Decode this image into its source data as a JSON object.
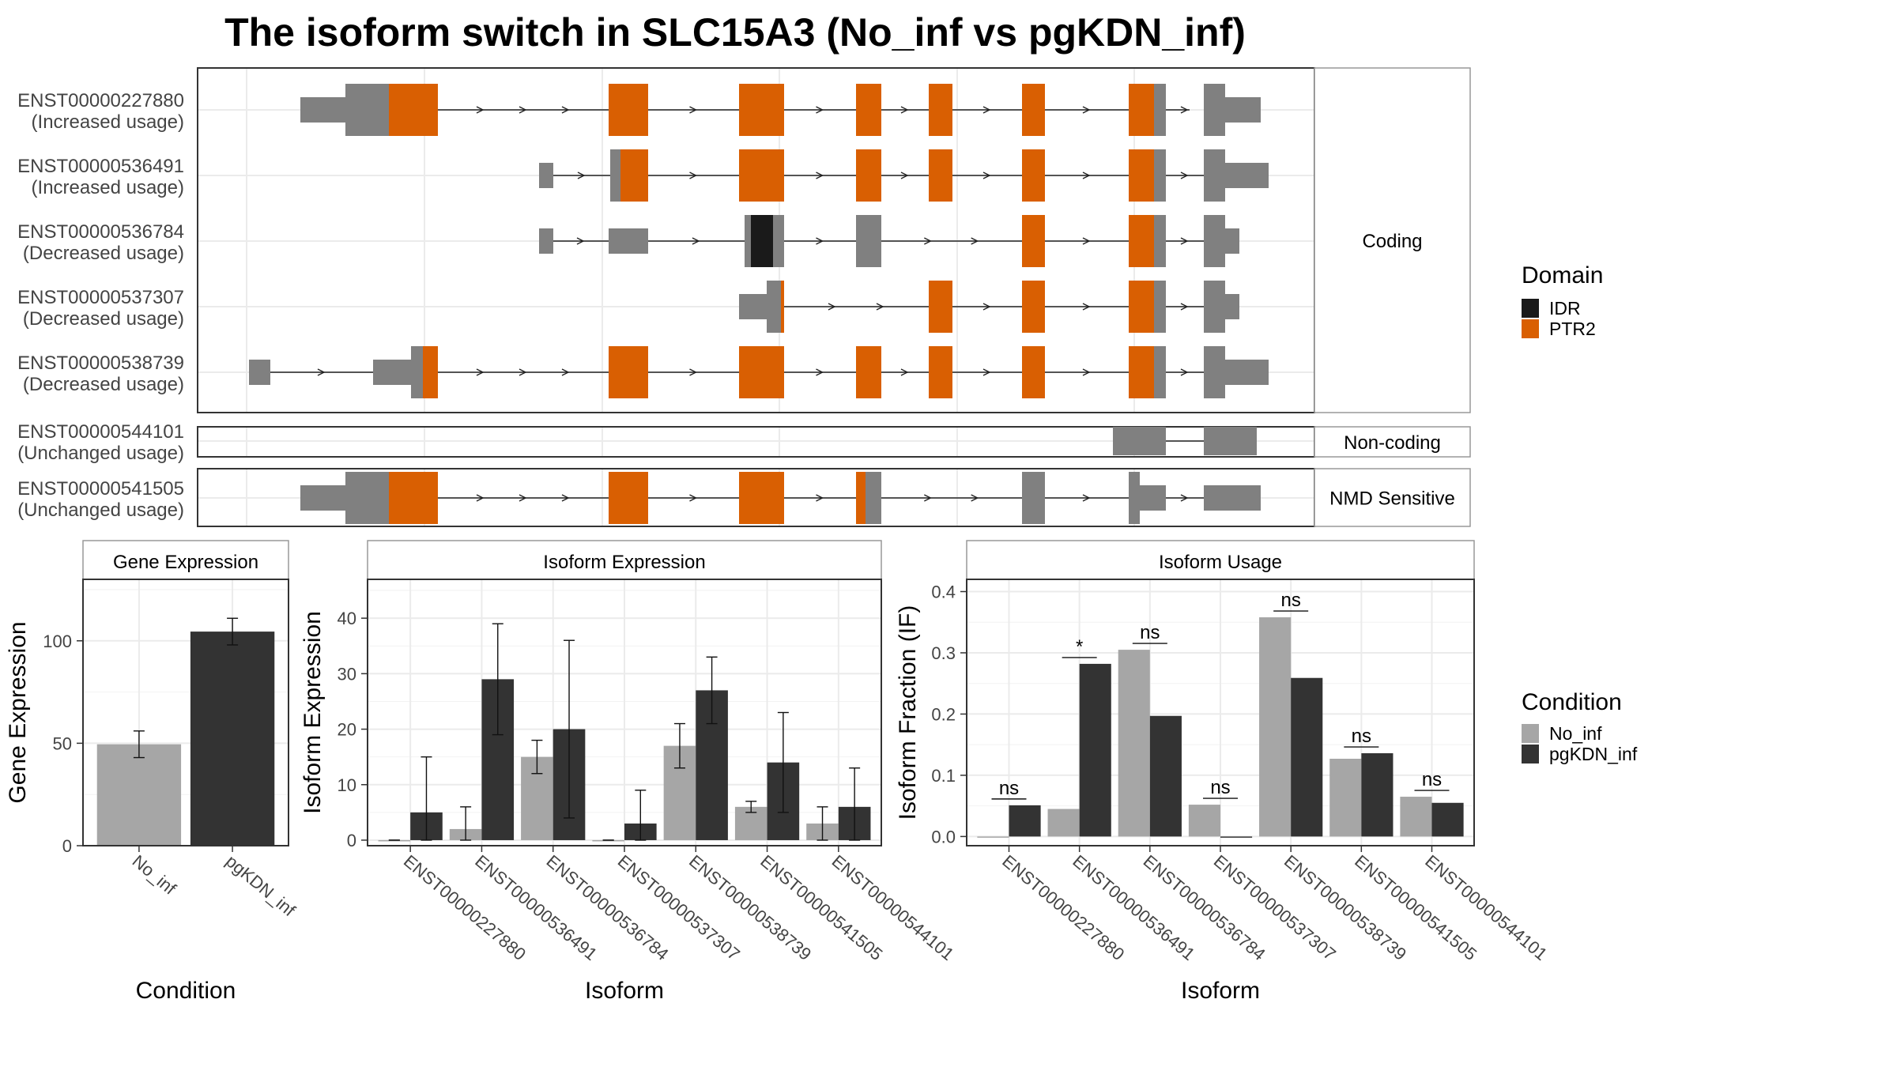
{
  "figure_title": "The isoform switch in SLC15A3 (No_inf vs pgKDN_inf)",
  "colors": {
    "no_inf": "#a6a6a6",
    "pgkdn_inf": "#333333",
    "ptr2": "#d95f02",
    "idr": "#1a1a1a",
    "exon": "#808080",
    "grid": "#ebebeb",
    "strip_border": "#999999"
  },
  "structure": {
    "sections": [
      {
        "name": "Coding"
      },
      {
        "name": "Non-coding"
      },
      {
        "name": "NMD Sensitive"
      }
    ],
    "isoforms": [
      {
        "id": "ENST00000227880",
        "usage": "(Increased usage)",
        "section": 0
      },
      {
        "id": "ENST00000536491",
        "usage": "(Increased usage)",
        "section": 0
      },
      {
        "id": "ENST00000536784",
        "usage": "(Decreased usage)",
        "section": 0
      },
      {
        "id": "ENST00000537307",
        "usage": "(Decreased usage)",
        "section": 0
      },
      {
        "id": "ENST00000538739",
        "usage": "(Decreased usage)",
        "section": 0
      },
      {
        "id": "ENST00000544101",
        "usage": "(Unchanged usage)",
        "section": 1
      },
      {
        "id": "ENST00000541505",
        "usage": "(Unchanged usage)",
        "section": 2
      }
    ],
    "legend_title": "Domain",
    "legend_items": [
      {
        "label": "IDR",
        "color": "#1a1a1a"
      },
      {
        "label": "PTR2",
        "color": "#d95f02"
      }
    ]
  },
  "chart_data": [
    {
      "type": "bar",
      "title": "Gene Expression",
      "xlabel": "Condition",
      "ylabel": "Gene Expression",
      "categories": [
        "No_inf",
        "pgKDN_inf"
      ],
      "ylim": [
        0,
        130
      ],
      "yticks": [
        0,
        50,
        100
      ],
      "values": [
        49.5,
        104.5
      ],
      "err_low": [
        43,
        98
      ],
      "err_high": [
        56,
        111
      ]
    },
    {
      "type": "bar",
      "title": "Isoform Expression",
      "xlabel": "Isoform",
      "ylabel": "Isoform Expression",
      "categories": [
        "ENST00000227880",
        "ENST00000536491",
        "ENST00000536784",
        "ENST00000537307",
        "ENST00000538739",
        "ENST00000541505",
        "ENST00000544101"
      ],
      "ylim": [
        -1,
        47
      ],
      "yticks": [
        0,
        10,
        20,
        30,
        40
      ],
      "series": [
        {
          "name": "No_inf",
          "values": [
            0,
            2,
            15,
            0,
            17,
            6,
            3
          ],
          "err_low": [
            0,
            0,
            12,
            0,
            13,
            5,
            0
          ],
          "err_high": [
            0,
            6,
            18,
            0,
            21,
            7,
            6
          ]
        },
        {
          "name": "pgKDN_inf",
          "values": [
            5,
            29,
            20,
            3,
            27,
            14,
            6
          ],
          "err_low": [
            0,
            19,
            4,
            0,
            21,
            5,
            0
          ],
          "err_high": [
            15,
            39,
            36,
            9,
            33,
            23,
            13
          ]
        }
      ]
    },
    {
      "type": "bar",
      "title": "Isoform Usage",
      "xlabel": "Isoform",
      "ylabel": "Isoform Fraction (IF)",
      "categories": [
        "ENST00000227880",
        "ENST00000536491",
        "ENST00000536784",
        "ENST00000537307",
        "ENST00000538739",
        "ENST00000541505",
        "ENST00000544101"
      ],
      "ylim": [
        -0.015,
        0.42
      ],
      "yticks": [
        0.0,
        0.1,
        0.2,
        0.3,
        0.4
      ],
      "significance": [
        "ns",
        "*",
        "ns",
        "ns",
        "ns",
        "ns",
        "ns"
      ],
      "series": [
        {
          "name": "No_inf",
          "values": [
            0.0,
            0.045,
            0.305,
            0.052,
            0.358,
            0.127,
            0.065
          ]
        },
        {
          "name": "pgKDN_inf",
          "values": [
            0.051,
            0.282,
            0.197,
            0.0,
            0.259,
            0.136,
            0.055
          ]
        }
      ]
    }
  ],
  "condition_legend": {
    "title": "Condition",
    "items": [
      {
        "label": "No_inf",
        "color": "#a6a6a6"
      },
      {
        "label": "pgKDN_inf",
        "color": "#333333"
      }
    ]
  }
}
